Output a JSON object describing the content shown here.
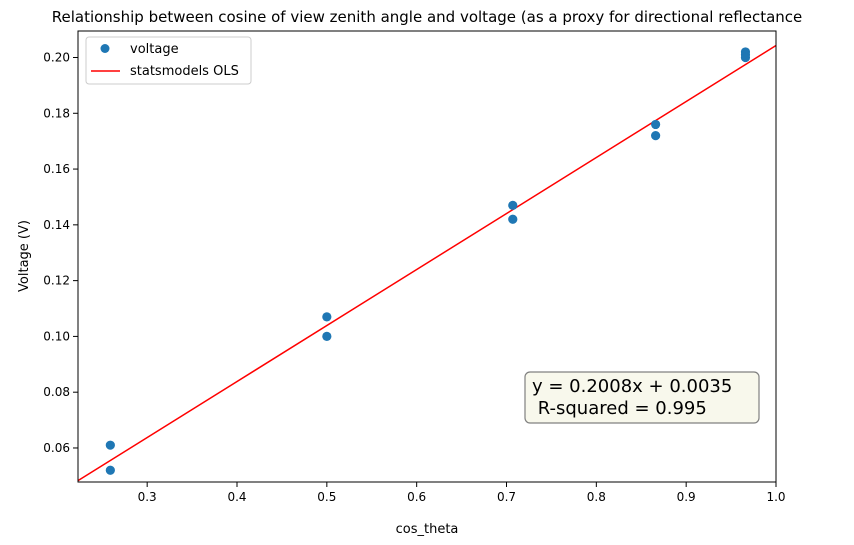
{
  "chart_data": {
    "type": "scatter",
    "title": "Relationship between cosine of view zenith angle and voltage (as a proxy for directional reflectance",
    "xlabel": "cos_theta",
    "ylabel": "Voltage (V)",
    "xlim": [
      0.223,
      1.0
    ],
    "ylim": [
      0.0478,
      0.2095
    ],
    "xticks": [
      0.3,
      0.4,
      0.5,
      0.6,
      0.7,
      0.8,
      0.9,
      1.0
    ],
    "xtick_labels": [
      "0.3",
      "0.4",
      "0.5",
      "0.6",
      "0.7",
      "0.8",
      "0.9",
      "1.0"
    ],
    "yticks": [
      0.06,
      0.08,
      0.1,
      0.12,
      0.14,
      0.16,
      0.18,
      0.2
    ],
    "ytick_labels": [
      "0.06",
      "0.08",
      "0.10",
      "0.12",
      "0.14",
      "0.16",
      "0.18",
      "0.20"
    ],
    "grid": false,
    "legend_position": "top-left",
    "series": [
      {
        "name": "voltage",
        "kind": "points",
        "color": "#1f77b4",
        "x": [
          0.259,
          0.259,
          0.5,
          0.5,
          0.707,
          0.707,
          0.866,
          0.866,
          0.966,
          0.966,
          0.966
        ],
        "y": [
          0.061,
          0.052,
          0.107,
          0.1,
          0.147,
          0.142,
          0.176,
          0.172,
          0.202,
          0.201,
          0.2
        ]
      },
      {
        "name": "statsmodels OLS",
        "kind": "line",
        "color": "#ff0000",
        "slope": 0.2008,
        "intercept": 0.0035
      }
    ],
    "annotation": {
      "line1": "y = 0.2008x + 0.0035",
      "line2": " R-squared = 0.995",
      "box_fill": "#f8f8ec",
      "box_stroke": "#808080"
    }
  }
}
